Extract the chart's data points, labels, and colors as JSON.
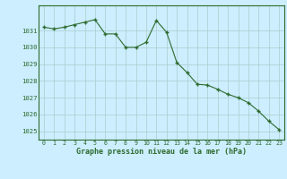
{
  "x": [
    0,
    1,
    2,
    3,
    4,
    5,
    6,
    7,
    8,
    9,
    10,
    11,
    12,
    13,
    14,
    15,
    16,
    17,
    18,
    19,
    20,
    21,
    22,
    23
  ],
  "y": [
    1031.2,
    1031.1,
    1031.2,
    1031.35,
    1031.5,
    1031.65,
    1030.8,
    1030.8,
    1030.0,
    1030.0,
    1030.3,
    1031.6,
    1030.9,
    1029.1,
    1028.5,
    1027.8,
    1027.75,
    1027.5,
    1027.2,
    1027.0,
    1026.7,
    1026.2,
    1025.6,
    1025.1
  ],
  "line_color": "#2d6a2d",
  "marker_color": "#2d6a2d",
  "bg_color": "#cceeff",
  "grid_color": "#aacccc",
  "xlabel": "Graphe pression niveau de la mer (hPa)",
  "xlabel_color": "#2d6a2d",
  "tick_color": "#2d6a2d",
  "ylim": [
    1024.5,
    1032.5
  ],
  "xlim": [
    -0.5,
    23.5
  ],
  "yticks": [
    1025,
    1026,
    1027,
    1028,
    1029,
    1030,
    1031
  ],
  "xticks": [
    0,
    1,
    2,
    3,
    4,
    5,
    6,
    7,
    8,
    9,
    10,
    11,
    12,
    13,
    14,
    15,
    16,
    17,
    18,
    19,
    20,
    21,
    22,
    23
  ],
  "figsize": [
    3.2,
    2.0
  ],
  "dpi": 100
}
